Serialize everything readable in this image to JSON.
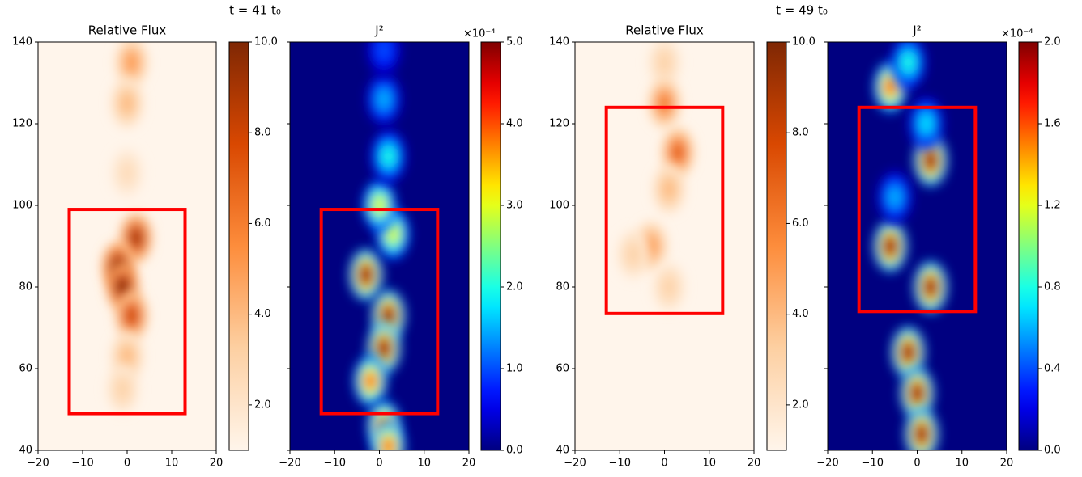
{
  "suptitles": [
    "t = 41 t₀",
    "t = 49 t₀"
  ],
  "chart_data": [
    {
      "type": "heatmap",
      "title": "Relative Flux",
      "colormap": "Oranges",
      "yticklabels": true,
      "xlim": [
        -20,
        20
      ],
      "ylim": [
        40,
        140
      ],
      "xticks": [
        {
          "value": -20,
          "label": "−20"
        },
        {
          "value": -10,
          "label": "−10"
        },
        0,
        10,
        20
      ],
      "yticks": [
        40,
        60,
        80,
        100,
        120,
        140
      ],
      "features": [
        {
          "x": 1,
          "y": 135,
          "value": 5
        },
        {
          "x": 0,
          "y": 125,
          "value": 4
        },
        {
          "x": 0,
          "y": 108,
          "value": 2.5
        },
        {
          "x": 2,
          "y": 92,
          "value": 9
        },
        {
          "x": -2,
          "y": 85,
          "value": 10
        },
        {
          "x": -1,
          "y": 80,
          "value": 10
        },
        {
          "x": 1,
          "y": 73,
          "value": 8
        },
        {
          "x": 0,
          "y": 63,
          "value": 4
        },
        {
          "x": -1,
          "y": 55,
          "value": 3
        }
      ],
      "boxes": [
        {
          "x": [
            -13,
            13
          ],
          "y": [
            49,
            99
          ],
          "color": "#ff0000"
        }
      ],
      "colorbar": {
        "clim": [
          1,
          10
        ],
        "ticks": [
          {
            "value": 2,
            "label": "2.0"
          },
          {
            "value": 4,
            "label": "4.0"
          },
          {
            "value": 6,
            "label": "6.0"
          },
          {
            "value": 8,
            "label": "8.0"
          },
          {
            "value": 10,
            "label": "10.0"
          }
        ]
      }
    },
    {
      "type": "heatmap",
      "title": "J²",
      "colormap": "jet",
      "yticklabels": false,
      "xlim": [
        -20,
        20
      ],
      "ylim": [
        40,
        140
      ],
      "xticks": [
        {
          "value": -20,
          "label": "−20"
        },
        {
          "value": -10,
          "label": "−10"
        },
        0,
        10,
        20
      ],
      "yticks": [
        40,
        60,
        80,
        100,
        120,
        140
      ],
      "features": [
        {
          "x": -3,
          "y": 83,
          "value": 5
        },
        {
          "x": 2,
          "y": 73,
          "value": 5
        },
        {
          "x": 1,
          "y": 65,
          "value": 5
        },
        {
          "x": -2,
          "y": 57,
          "value": 4
        },
        {
          "x": 3,
          "y": 93,
          "value": 3
        },
        {
          "x": 0,
          "y": 100,
          "value": 3
        },
        {
          "x": 2,
          "y": 112,
          "value": 2
        },
        {
          "x": 1,
          "y": 126,
          "value": 1.5
        },
        {
          "x": 1,
          "y": 138,
          "value": 1
        },
        {
          "x": 1,
          "y": 46,
          "value": 4
        },
        {
          "x": 2,
          "y": 41,
          "value": 4
        }
      ],
      "boxes": [
        {
          "x": [
            -13,
            13
          ],
          "y": [
            49,
            99
          ],
          "color": "#ff0000"
        }
      ],
      "colorbar": {
        "clim": [
          0,
          5
        ],
        "multiplier": "×10⁻⁴",
        "ticks": [
          {
            "value": 0,
            "label": "0.0"
          },
          {
            "value": 1,
            "label": "1.0"
          },
          {
            "value": 2,
            "label": "2.0"
          },
          {
            "value": 3,
            "label": "3.0"
          },
          {
            "value": 4,
            "label": "4.0"
          },
          {
            "value": 5,
            "label": "5.0"
          }
        ]
      }
    },
    {
      "type": "heatmap",
      "title": "Relative Flux",
      "colormap": "Oranges",
      "yticklabels": true,
      "xlim": [
        -20,
        20
      ],
      "ylim": [
        40,
        140
      ],
      "xticks": [
        {
          "value": -20,
          "label": "−20"
        },
        {
          "value": -10,
          "label": "−10"
        },
        0,
        10,
        20
      ],
      "yticks": [
        40,
        60,
        80,
        100,
        120,
        140
      ],
      "features": [
        {
          "x": 0,
          "y": 135,
          "value": 3
        },
        {
          "x": 0,
          "y": 125,
          "value": 6
        },
        {
          "x": 3,
          "y": 113,
          "value": 7
        },
        {
          "x": 1,
          "y": 104,
          "value": 4
        },
        {
          "x": -3,
          "y": 90,
          "value": 5
        },
        {
          "x": -7,
          "y": 88,
          "value": 3
        },
        {
          "x": 1,
          "y": 80,
          "value": 3
        }
      ],
      "boxes": [
        {
          "x": [
            -13,
            13
          ],
          "y": [
            73.5,
            124
          ],
          "color": "#ff0000"
        }
      ],
      "colorbar": {
        "clim": [
          1,
          10
        ],
        "ticks": [
          {
            "value": 2,
            "label": "2.0"
          },
          {
            "value": 4,
            "label": "4.0"
          },
          {
            "value": 6,
            "label": "6.0"
          },
          {
            "value": 8,
            "label": "8.0"
          },
          {
            "value": 10,
            "label": "10.0"
          }
        ]
      }
    },
    {
      "type": "heatmap",
      "title": "J²",
      "colormap": "jet",
      "yticklabels": false,
      "xlim": [
        -20,
        20
      ],
      "ylim": [
        40,
        140
      ],
      "xticks": [
        {
          "value": -20,
          "label": "−20"
        },
        {
          "value": -10,
          "label": "−10"
        },
        0,
        10,
        20
      ],
      "yticks": [
        40,
        60,
        80,
        100,
        120,
        140
      ],
      "features": [
        {
          "x": -6,
          "y": 129,
          "value": 1.6
        },
        {
          "x": 3,
          "y": 111,
          "value": 2
        },
        {
          "x": -6,
          "y": 90,
          "value": 2
        },
        {
          "x": 3,
          "y": 80,
          "value": 2
        },
        {
          "x": -2,
          "y": 64,
          "value": 2
        },
        {
          "x": 0,
          "y": 54,
          "value": 2
        },
        {
          "x": 1,
          "y": 44,
          "value": 2
        },
        {
          "x": -2,
          "y": 135,
          "value": 0.8
        },
        {
          "x": -5,
          "y": 102,
          "value": 0.6
        },
        {
          "x": 2,
          "y": 120,
          "value": 0.7
        }
      ],
      "boxes": [
        {
          "x": [
            -13,
            13
          ],
          "y": [
            74,
            124
          ],
          "color": "#ff0000"
        }
      ],
      "colorbar": {
        "clim": [
          0,
          2
        ],
        "multiplier": "×10⁻⁴",
        "ticks": [
          {
            "value": 0,
            "label": "0.0"
          },
          {
            "value": 0.4,
            "label": "0.4"
          },
          {
            "value": 0.8,
            "label": "0.8"
          },
          {
            "value": 1.2,
            "label": "1.2"
          },
          {
            "value": 1.6,
            "label": "1.6"
          },
          {
            "value": 2,
            "label": "2.0"
          }
        ]
      }
    }
  ]
}
